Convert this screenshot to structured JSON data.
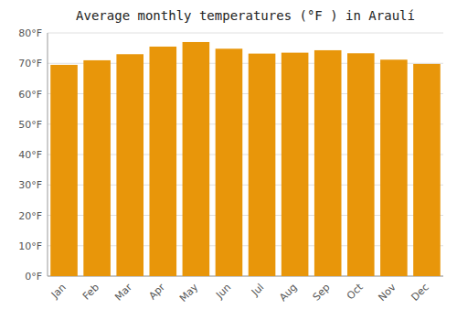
{
  "chart_data": {
    "type": "bar",
    "title": "Average monthly temperatures (°F ) in Araulí",
    "categories": [
      "Jan",
      "Feb",
      "Mar",
      "Apr",
      "May",
      "Jun",
      "Jul",
      "Aug",
      "Sep",
      "Oct",
      "Nov",
      "Dec"
    ],
    "values": [
      69.5,
      71.0,
      73.0,
      75.5,
      77.0,
      74.8,
      73.2,
      73.5,
      74.3,
      73.3,
      71.2,
      69.8
    ],
    "color": "#E8960A",
    "ylim": [
      0,
      80
    ],
    "yticks": [
      {
        "value": 0,
        "label": "0°F"
      },
      {
        "value": 10,
        "label": "10°F"
      },
      {
        "value": 20,
        "label": "20°F"
      },
      {
        "value": 30,
        "label": "30°F"
      },
      {
        "value": 40,
        "label": "40°F"
      },
      {
        "value": 50,
        "label": "50°F"
      },
      {
        "value": 60,
        "label": "60°F"
      },
      {
        "value": 70,
        "label": "70°F"
      },
      {
        "value": 80,
        "label": "80°F"
      }
    ],
    "grid": true
  }
}
